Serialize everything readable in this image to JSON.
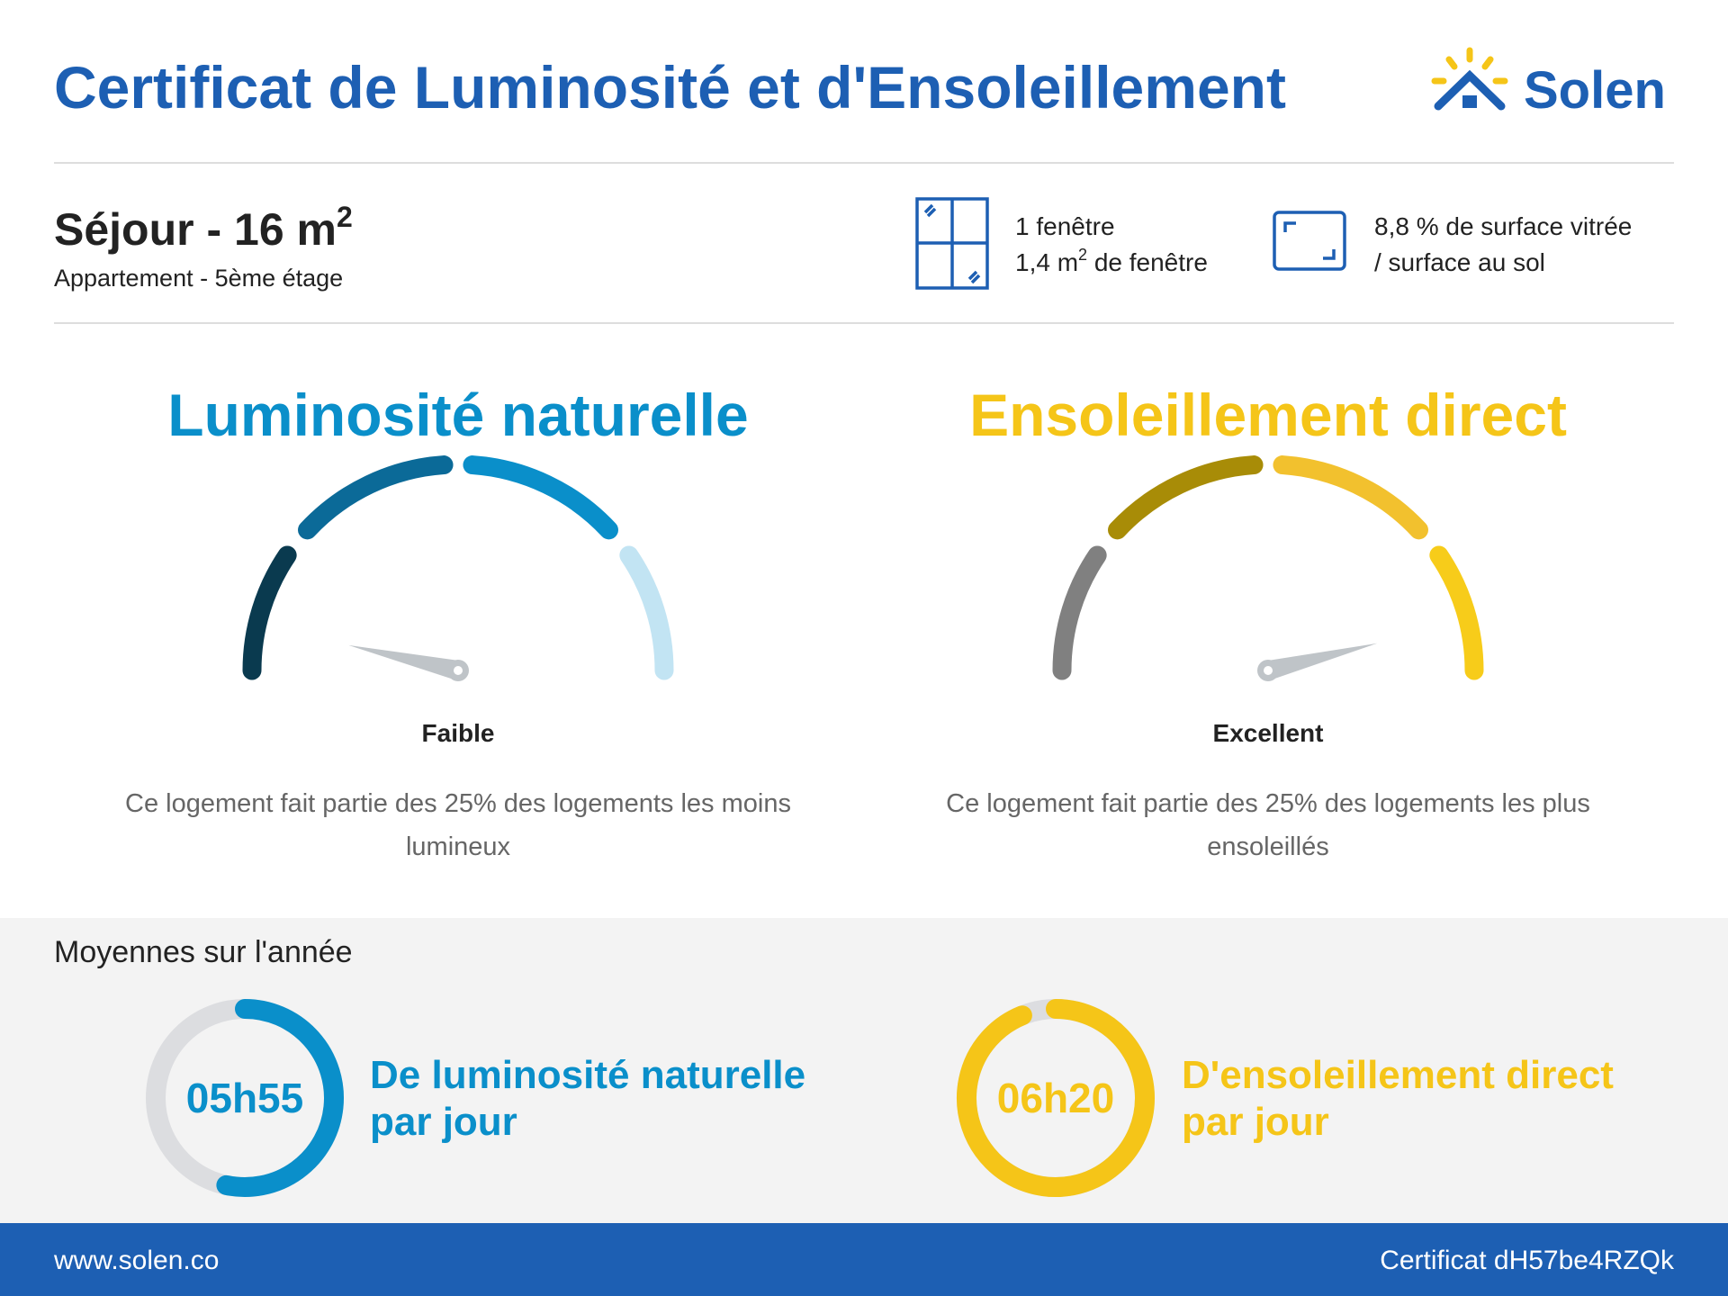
{
  "header": {
    "title": "Certificat de Luminosité et d'Ensoleillement",
    "logo": "Solen"
  },
  "room": {
    "name": "Séjour - 16 m",
    "name_sup": "2",
    "subtitle": "Appartement - 5ème étage"
  },
  "windows": {
    "line1": "1 fenêtre",
    "line2_a": "1,4 m",
    "line2_sup": "2",
    "line2_b": " de fenêtre"
  },
  "surface": {
    "line1": "8,8 % de surface vitrée",
    "line2": "/ surface au sol"
  },
  "luminosity": {
    "title": "Luminosité naturelle",
    "rating": "Faible",
    "desc1": "Ce logement fait partie des 25% des logements les moins",
    "desc2": "lumineux"
  },
  "sunshine": {
    "title": "Ensoleillement direct",
    "rating": "Excellent",
    "desc1": "Ce logement fait partie des 25% des logements les plus",
    "desc2": "ensoleillés"
  },
  "averages": {
    "title": "Moyennes sur l'année",
    "luminosity": {
      "time": "05h55",
      "line1": "De luminosité naturelle",
      "line2": "par jour"
    },
    "sunshine": {
      "time": "06h20",
      "line1": "D'ensoleillement direct",
      "line2": "par jour"
    }
  },
  "footer": {
    "url": "www.solen.co",
    "certificate": "Certificat dH57be4RZQk"
  }
}
